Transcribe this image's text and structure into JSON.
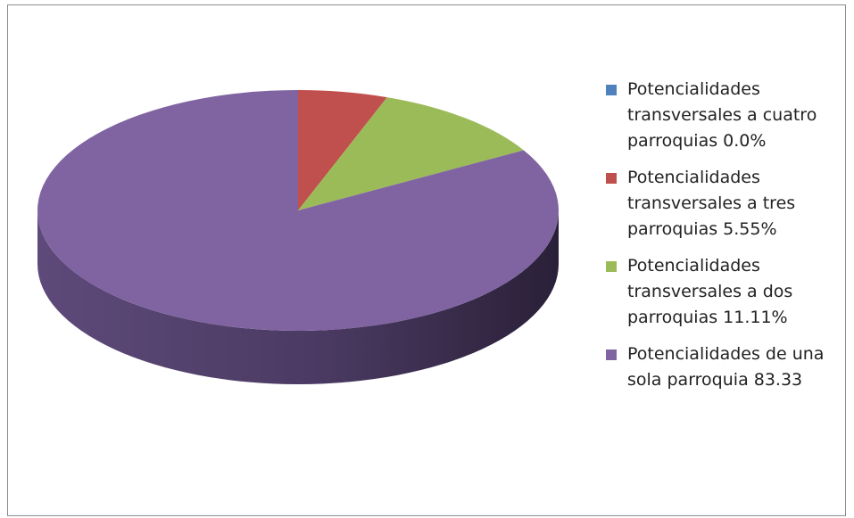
{
  "chart_data": {
    "type": "pie",
    "title": "",
    "categories": [
      "Potencialidades transversales a cuatro parroquias",
      "Potencialidades transversales a tres parroquias",
      "Potencialidades transversales a dos parroquias",
      "Potencialidades de una sola parroquia"
    ],
    "values": [
      0.0,
      5.55,
      11.11,
      83.33
    ],
    "colors": [
      "#4f81bd",
      "#c0504d",
      "#9bbb59",
      "#8064a2"
    ],
    "legend": {
      "position": "right",
      "entries": [
        "Potencialidades transversales a cuatro parroquias 0.0%",
        "Potencialidades transversales a tres parroquias 5.55%",
        "Potencialidades transversales a dos parroquias 11.11%",
        "Potencialidades de una sola parroquia 83.33"
      ]
    },
    "style": "3d"
  }
}
